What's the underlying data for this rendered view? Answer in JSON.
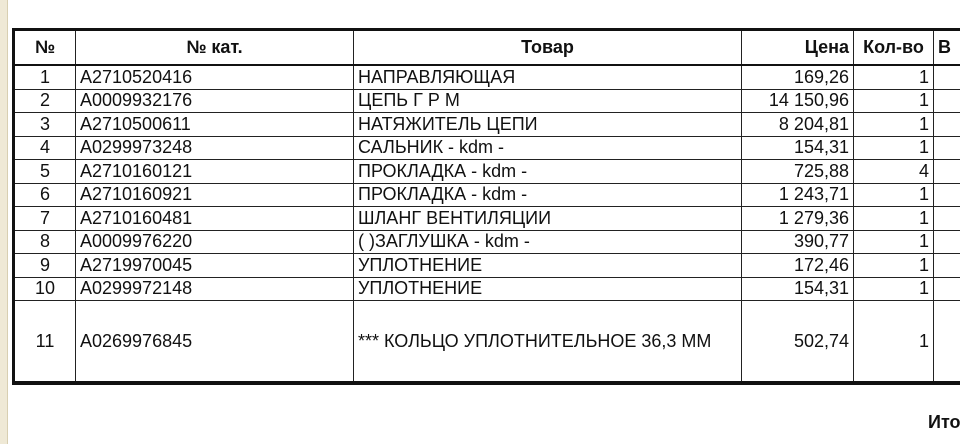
{
  "columns": [
    "№",
    "№ кат.",
    "Товар",
    "Цена",
    "Кол-во",
    "В"
  ],
  "rows": [
    {
      "n": "1",
      "cat": "A2710520416",
      "item": "НАПРАВЛЯЮЩАЯ",
      "price": "169,26",
      "qty": "1"
    },
    {
      "n": "2",
      "cat": "A0009932176",
      "item": "ЦЕПЬ   Г Р М",
      "price": "14 150,96",
      "qty": "1"
    },
    {
      "n": "3",
      "cat": "A2710500611",
      "item": "НАТЯЖИТЕЛЬ  ЦЕПИ",
      "price": "8 204,81",
      "qty": "1"
    },
    {
      "n": "4",
      "cat": "A0299973248",
      "item": "САЛЬНИК - kdm -",
      "price": "154,31",
      "qty": "1"
    },
    {
      "n": "5",
      "cat": "A2710160121",
      "item": "ПРОКЛАДКА - kdm -",
      "price": "725,88",
      "qty": "4"
    },
    {
      "n": "6",
      "cat": "A2710160921",
      "item": "ПРОКЛАДКА - kdm -",
      "price": "1 243,71",
      "qty": "1"
    },
    {
      "n": "7",
      "cat": "A2710160481",
      "item": "ШЛАНГ ВЕНТИЛЯЦИИ",
      "price": "1 279,36",
      "qty": "1"
    },
    {
      "n": "8",
      "cat": "A0009976220",
      "item": "( )ЗАГЛУШКА - kdm -",
      "price": "390,77",
      "qty": "1"
    },
    {
      "n": "9",
      "cat": "A2719970045",
      "item": "УПЛОТНЕНИЕ",
      "price": "172,46",
      "qty": "1"
    },
    {
      "n": "10",
      "cat": "A0299972148",
      "item": "УПЛОТНЕНИЕ",
      "price": "154,31",
      "qty": "1"
    },
    {
      "n": "11",
      "cat": "A0269976845",
      "item": "*** КОЛЬЦО УПЛОТНИТЕЛЬНОЕ 36,3 ММ",
      "price": "502,74",
      "qty": "1"
    }
  ],
  "footer": {
    "total_label": "Ито"
  }
}
